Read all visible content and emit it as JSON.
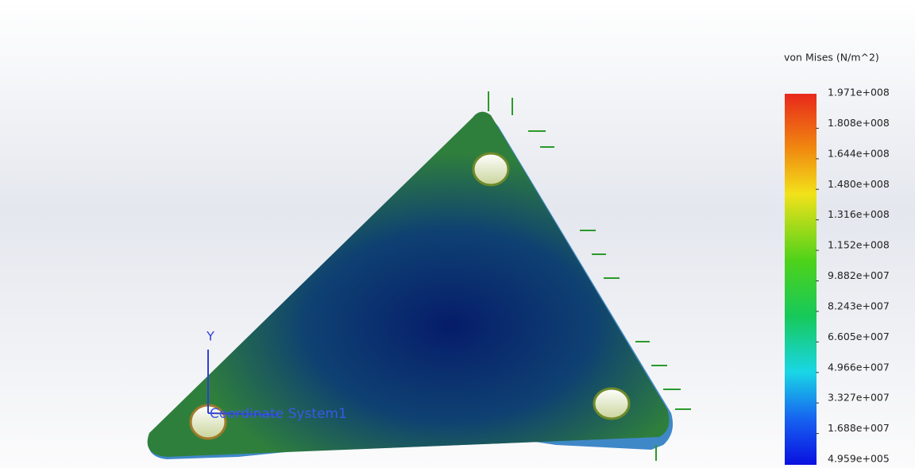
{
  "legend": {
    "title": "von Mises (N/m^2)",
    "labels": [
      "1.971e+008",
      "1.808e+008",
      "1.644e+008",
      "1.480e+008",
      "1.316e+008",
      "1.152e+008",
      "9.882e+007",
      "8.243e+007",
      "6.605e+007",
      "4.966e+007",
      "3.327e+007",
      "1.688e+007",
      "4.959e+005"
    ]
  },
  "viewport": {
    "axis_label": "Y",
    "coordinate_system": "Coordinate System1"
  }
}
